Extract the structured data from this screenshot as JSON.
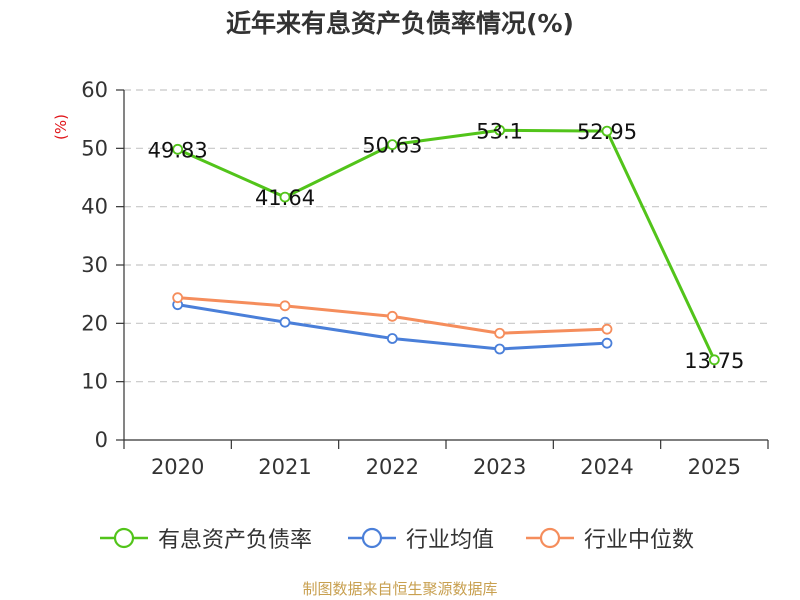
{
  "chart_data": {
    "type": "line",
    "title": "近年来有息资产负债率情况(%)",
    "ylabel": "(%)",
    "xlabel": "",
    "categories": [
      "2020",
      "2021",
      "2022",
      "2023",
      "2024",
      "2025"
    ],
    "ylim": [
      0,
      60
    ],
    "yticks": [
      0,
      10,
      20,
      30,
      40,
      50,
      60
    ],
    "grid": true,
    "legend_position": "bottom",
    "series": [
      {
        "name": "有息资产负债率",
        "color": "#52c41a",
        "values": [
          49.83,
          41.64,
          50.63,
          53.1,
          52.95,
          13.75
        ],
        "labels": [
          "49.83",
          "41.64",
          "50.63",
          "53.1",
          "52.95",
          "13.75"
        ]
      },
      {
        "name": "行业均值",
        "color": "#4a7fd9",
        "values": [
          23.2,
          20.2,
          17.4,
          15.6,
          16.6,
          null
        ]
      },
      {
        "name": "行业中位数",
        "color": "#f58d5c",
        "values": [
          24.4,
          23.0,
          21.2,
          18.3,
          19.0,
          null
        ]
      }
    ]
  },
  "colors": {
    "title": "#333333",
    "axis_label": "#e0151a",
    "source": "#c8a050"
  },
  "source": "制图数据来自恒生聚源数据库"
}
